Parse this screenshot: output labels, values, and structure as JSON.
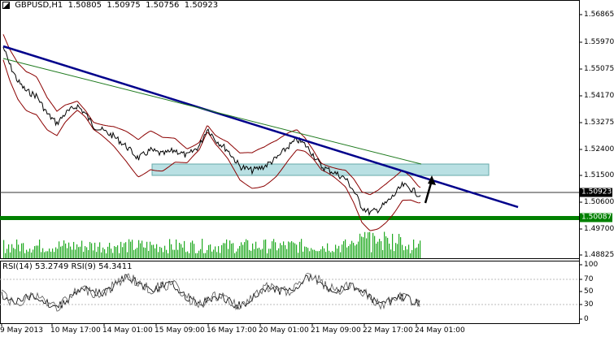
{
  "chart_header": {
    "symbol": "GBPUSD,H1",
    "open": "1.50805",
    "high": "1.50975",
    "low": "1.50756",
    "close": "1.50923"
  },
  "rsi_header": {
    "rsi14": "RSI(14) 53.2749",
    "rsi9": "RSI(9) 54.3411"
  },
  "price_scale": [
    "1.56865",
    "1.55970",
    "1.55075",
    "1.54170",
    "1.53275",
    "1.52400",
    "1.51500",
    "1.50600",
    "1.49700",
    "1.48825"
  ],
  "current_price": "1.50923",
  "support_price": "1.50087",
  "rsi_scale": [
    "100",
    "70",
    "50",
    "30",
    "0"
  ],
  "time_scale": [
    "9 May 2013",
    "10 May 17:00",
    "14 May 01:00",
    "15 May 09:00",
    "16 May 17:00",
    "20 May 01:00",
    "21 May 09:00",
    "22 May 17:00",
    "24 May 01:00"
  ],
  "colors": {
    "background": "#ffffff",
    "price": "#000000",
    "bollinger": "#8b0000",
    "trendline": "#00008b",
    "green_trendline": "#1e7a1e",
    "support_line": "#008000",
    "zone": "#a8d8dc",
    "volume": "#22aa22",
    "rsi": "#000000"
  }
}
